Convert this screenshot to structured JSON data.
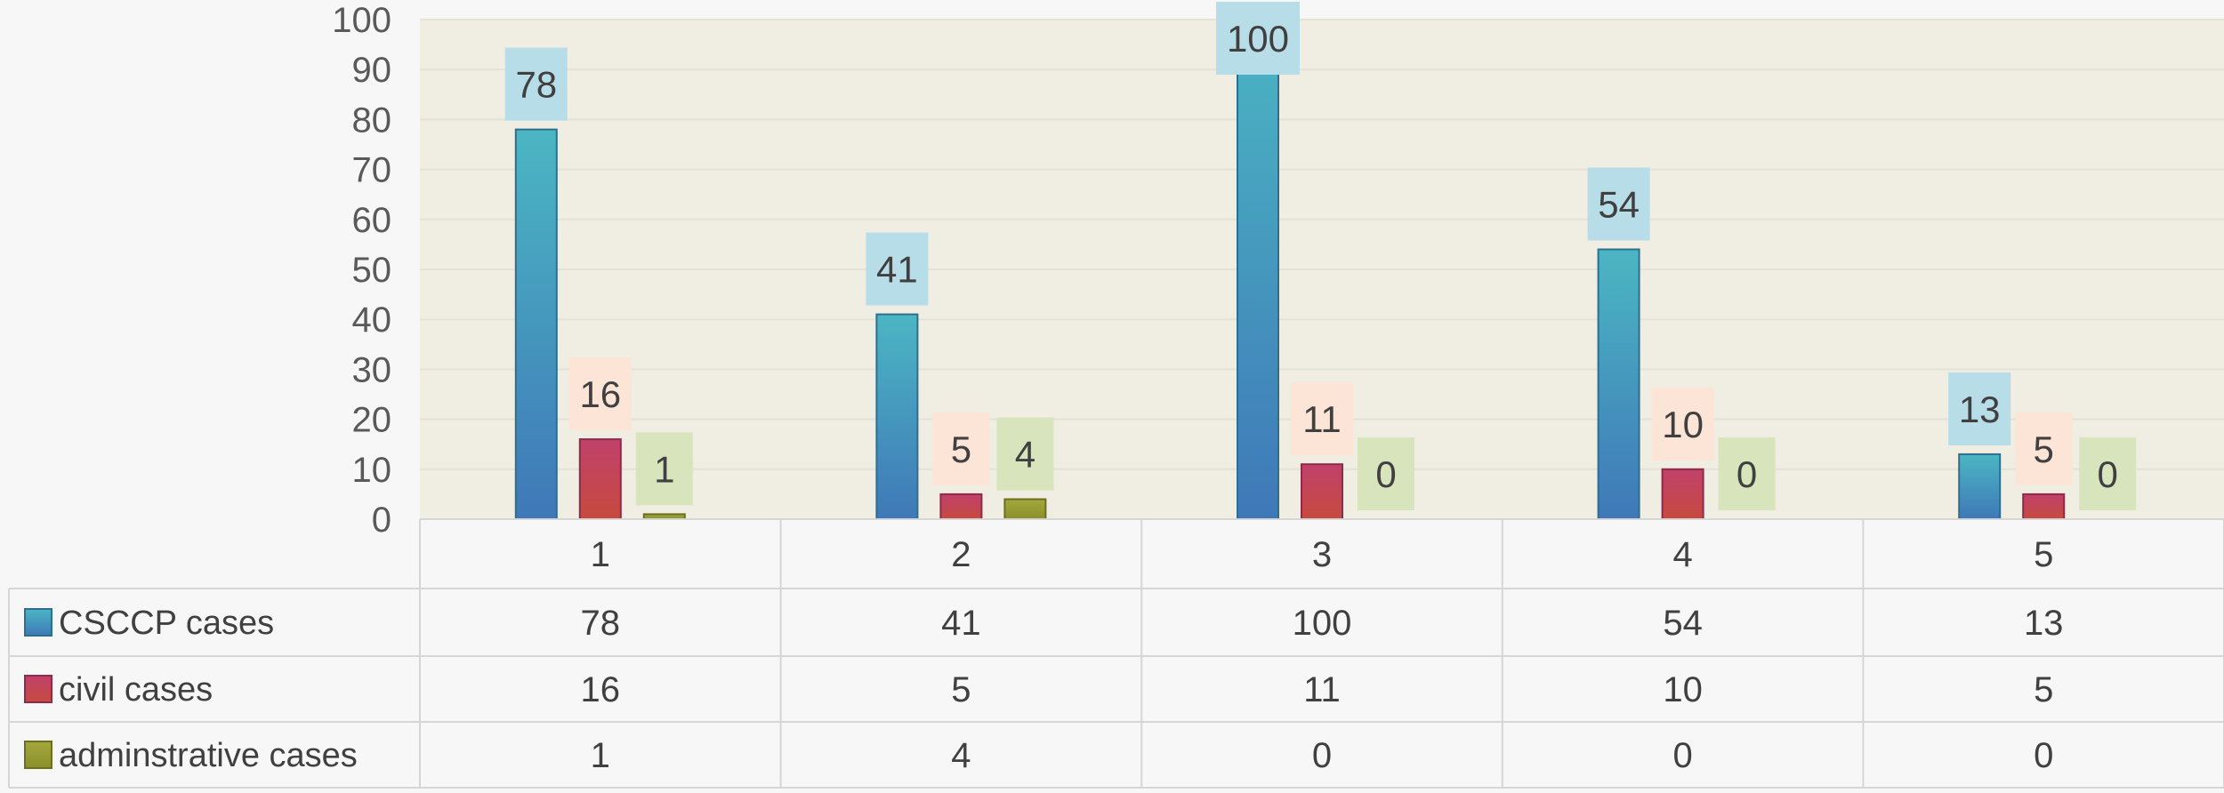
{
  "chart_data": {
    "type": "bar",
    "categories": [
      "1",
      "2",
      "3",
      "4",
      "5"
    ],
    "series": [
      {
        "name": "CSCCP cases",
        "values": [
          78,
          41,
          100,
          54,
          13
        ]
      },
      {
        "name": "civil cases",
        "values": [
          16,
          5,
          11,
          10,
          5
        ]
      },
      {
        "name": "adminstrative cases",
        "values": [
          1,
          4,
          0,
          0,
          0
        ]
      }
    ],
    "yticks": [
      "0",
      "10",
      "20",
      "30",
      "40",
      "50",
      "60",
      "70",
      "80",
      "90",
      "100"
    ],
    "ylim": [
      0,
      100
    ],
    "grid": true,
    "data_table": true,
    "title": "",
    "xlabel": "",
    "ylabel": ""
  },
  "colors": {
    "plot_background": "#f0ede2",
    "page_background": "#f7f7f7",
    "gridline": "#e4e1d6",
    "table_border": "#d6d6d6",
    "series": [
      {
        "top": "#4bb6c3",
        "bottom": "#3f78b8",
        "stroke": "#2e6f8e",
        "label_bg": "#b7dde8"
      },
      {
        "top": "#c0416b",
        "bottom": "#c74a3e",
        "stroke": "#8e2b4a",
        "label_bg": "#fce4d6"
      },
      {
        "top": "#a4a83c",
        "bottom": "#8a8f2a",
        "stroke": "#6b6f1e",
        "label_bg": "#d8e4bc"
      }
    ]
  }
}
